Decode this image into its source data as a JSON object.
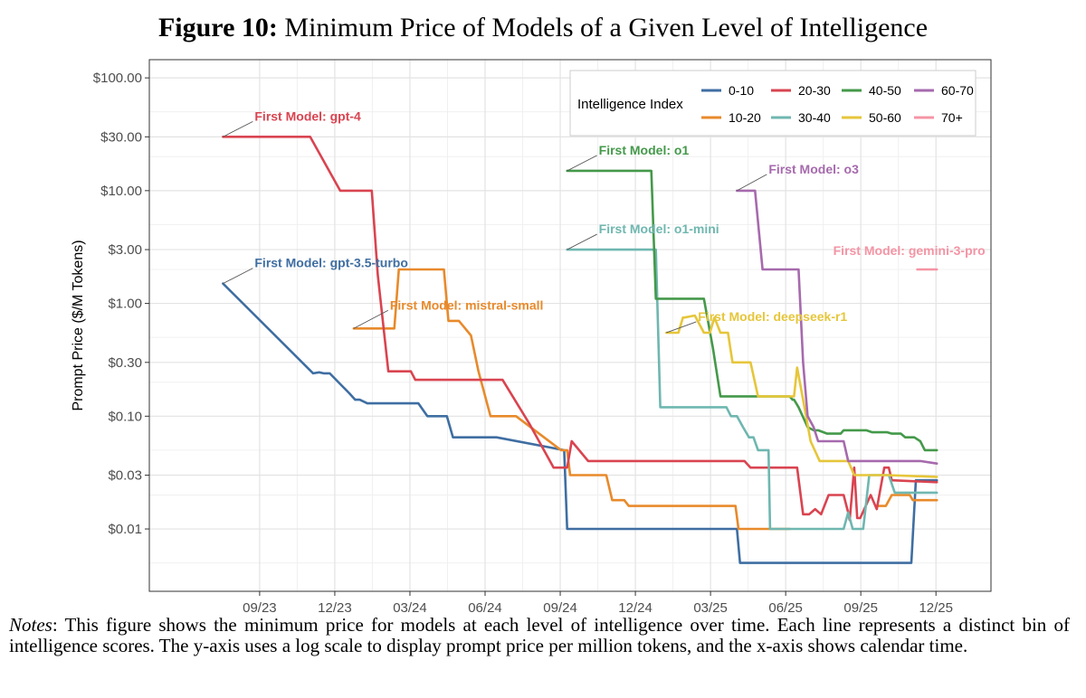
{
  "figure": {
    "number_label": "Figure 10:",
    "title": "Minimum Price of Models of a Given Level of Intelligence"
  },
  "notes": {
    "label": "Notes",
    "text": ": This figure shows the minimum price for models at each level of intelligence over time. Each line represents a distinct bin of intelligence scores. The y-axis uses a log scale to display prompt price per million tokens, and the x-axis shows calendar time."
  },
  "chart_data": {
    "type": "line",
    "title": "Minimum Price of Models of a Given Level of Intelligence",
    "xlabel": "",
    "ylabel": "Prompt Price ($/M Tokens)",
    "yscale": "log",
    "ylim": [
      0.0028,
      145
    ],
    "xlim": [
      2023.3,
      2026.1
    ],
    "grid": true,
    "x_ticks": [
      {
        "label": "09/23",
        "value": 2023.667
      },
      {
        "label": "12/23",
        "value": 2023.917
      },
      {
        "label": "03/24",
        "value": 2024.167
      },
      {
        "label": "06/24",
        "value": 2024.417
      },
      {
        "label": "09/24",
        "value": 2024.667
      },
      {
        "label": "12/24",
        "value": 2024.917
      },
      {
        "label": "03/25",
        "value": 2025.167
      },
      {
        "label": "06/25",
        "value": 2025.417
      },
      {
        "label": "09/25",
        "value": 2025.667
      },
      {
        "label": "12/25",
        "value": 2025.917
      }
    ],
    "y_ticks": [
      {
        "label": "$100.00",
        "value": 100
      },
      {
        "label": "$30.00",
        "value": 30
      },
      {
        "label": "$10.00",
        "value": 10
      },
      {
        "label": "$3.00",
        "value": 3
      },
      {
        "label": "$1.00",
        "value": 1
      },
      {
        "label": "$0.30",
        "value": 0.3
      },
      {
        "label": "$0.10",
        "value": 0.1
      },
      {
        "label": "$0.03",
        "value": 0.03
      },
      {
        "label": "$0.01",
        "value": 0.01
      }
    ],
    "y_minor_ticks": [
      50,
      20,
      5,
      2,
      0.5,
      0.2,
      0.05,
      0.02,
      0.005
    ],
    "legend": {
      "title": "Intelligence Index",
      "position": "top-right",
      "columns": 4
    },
    "series": [
      {
        "name": "0-10",
        "color": "#3f6ea2",
        "legend_order": 0,
        "first_model": "First Model: gpt-3.5-turbo",
        "points": [
          [
            2023.545,
            1.5
          ],
          [
            2023.845,
            0.24
          ],
          [
            2023.865,
            0.245
          ],
          [
            2023.88,
            0.24
          ],
          [
            2023.9,
            0.24
          ],
          [
            2023.965,
            0.16
          ],
          [
            2023.985,
            0.14
          ],
          [
            2024.0,
            0.14
          ],
          [
            2024.025,
            0.13
          ],
          [
            2024.155,
            0.13
          ],
          [
            2024.195,
            0.13
          ],
          [
            2024.225,
            0.1
          ],
          [
            2024.29,
            0.1
          ],
          [
            2024.31,
            0.065
          ],
          [
            2024.455,
            0.065
          ],
          [
            2024.68,
            0.05
          ],
          [
            2024.69,
            0.01
          ],
          [
            2025.255,
            0.01
          ],
          [
            2025.265,
            0.005
          ],
          [
            2025.835,
            0.005
          ],
          [
            2025.85,
            0.027
          ],
          [
            2025.92,
            0.027
          ]
        ]
      },
      {
        "name": "10-20",
        "color": "#e88a2b",
        "legend_order": 4,
        "first_model": "First Model: mistral-small",
        "points": [
          [
            2023.98,
            0.6
          ],
          [
            2024.115,
            0.6
          ],
          [
            2024.13,
            2.0
          ],
          [
            2024.165,
            2.0
          ],
          [
            2024.28,
            2.0
          ],
          [
            2024.295,
            0.7
          ],
          [
            2024.33,
            0.7
          ],
          [
            2024.37,
            0.52
          ],
          [
            2024.395,
            0.25
          ],
          [
            2024.435,
            0.1
          ],
          [
            2024.52,
            0.1
          ],
          [
            2024.67,
            0.05
          ],
          [
            2024.69,
            0.05
          ],
          [
            2024.7,
            0.03
          ],
          [
            2024.82,
            0.03
          ],
          [
            2024.84,
            0.018
          ],
          [
            2024.88,
            0.018
          ],
          [
            2024.895,
            0.016
          ],
          [
            2025.25,
            0.016
          ],
          [
            2025.26,
            0.01
          ],
          [
            2025.365,
            0.01
          ],
          [
            2025.385,
            0.01
          ],
          [
            2025.43,
            0.01
          ]
        ],
        "points_b": [
          [
            2025.72,
            0.016
          ],
          [
            2025.75,
            0.016
          ],
          [
            2025.77,
            0.02
          ],
          [
            2025.83,
            0.02
          ],
          [
            2025.84,
            0.018
          ],
          [
            2025.92,
            0.018
          ]
        ]
      },
      {
        "name": "20-30",
        "color": "#d94450",
        "legend_order": 1,
        "first_model": "First Model: gpt-4",
        "points": [
          [
            2023.545,
            30
          ],
          [
            2023.835,
            30
          ],
          [
            2023.935,
            10
          ],
          [
            2023.96,
            10
          ],
          [
            2024.0,
            10
          ],
          [
            2024.025,
            10
          ],
          [
            2024.04,
            10
          ],
          [
            2024.06,
            1.8
          ],
          [
            2024.095,
            0.25
          ],
          [
            2024.15,
            0.25
          ],
          [
            2024.17,
            0.25
          ],
          [
            2024.185,
            0.21
          ],
          [
            2024.245,
            0.21
          ],
          [
            2024.29,
            0.21
          ],
          [
            2024.365,
            0.21
          ],
          [
            2024.475,
            0.21
          ],
          [
            2024.565,
            0.085
          ],
          [
            2024.645,
            0.035
          ],
          [
            2024.68,
            0.035
          ],
          [
            2024.69,
            0.035
          ],
          [
            2024.705,
            0.06
          ],
          [
            2024.76,
            0.04
          ],
          [
            2025.075,
            0.04
          ],
          [
            2025.28,
            0.04
          ],
          [
            2025.3,
            0.035
          ],
          [
            2025.385,
            0.035
          ],
          [
            2025.455,
            0.035
          ],
          [
            2025.475,
            0.0135
          ],
          [
            2025.495,
            0.0135
          ],
          [
            2025.515,
            0.015
          ],
          [
            2025.535,
            0.0135
          ],
          [
            2025.56,
            0.02
          ],
          [
            2025.61,
            0.02
          ],
          [
            2025.625,
            0.014
          ],
          [
            2025.63,
            0.012
          ],
          [
            2025.645,
            0.035
          ],
          [
            2025.655,
            0.0125
          ],
          [
            2025.665,
            0.0125
          ],
          [
            2025.7,
            0.02
          ],
          [
            2025.72,
            0.015
          ],
          [
            2025.745,
            0.035
          ],
          [
            2025.76,
            0.035
          ],
          [
            2025.77,
            0.027
          ],
          [
            2025.92,
            0.026
          ]
        ]
      },
      {
        "name": "30-40",
        "color": "#6fb7b0",
        "legend_order": 5,
        "first_model": "First Model: o1-mini",
        "points": [
          [
            2024.69,
            3.0
          ],
          [
            2024.74,
            3.0
          ],
          [
            2024.965,
            3.0
          ],
          [
            2024.985,
            3.0
          ],
          [
            2025.0,
            0.12
          ],
          [
            2025.06,
            0.12
          ],
          [
            2025.12,
            0.12
          ],
          [
            2025.22,
            0.12
          ],
          [
            2025.235,
            0.1
          ],
          [
            2025.255,
            0.1
          ],
          [
            2025.275,
            0.08
          ],
          [
            2025.295,
            0.065
          ],
          [
            2025.31,
            0.065
          ],
          [
            2025.325,
            0.05
          ],
          [
            2025.335,
            0.05
          ],
          [
            2025.36,
            0.05
          ],
          [
            2025.365,
            0.01
          ],
          [
            2025.415,
            0.01
          ],
          [
            2025.55,
            0.01
          ],
          [
            2025.61,
            0.01
          ],
          [
            2025.625,
            0.014
          ],
          [
            2025.64,
            0.01
          ],
          [
            2025.65,
            0.01
          ],
          [
            2025.675,
            0.01
          ],
          [
            2025.695,
            0.03
          ],
          [
            2025.76,
            0.03
          ],
          [
            2025.78,
            0.021
          ],
          [
            2025.815,
            0.021
          ],
          [
            2025.92,
            0.021
          ]
        ]
      },
      {
        "name": "40-50",
        "color": "#44994a",
        "legend_order": 2,
        "first_model": "First Model: o1",
        "points": [
          [
            2024.69,
            15
          ],
          [
            2024.72,
            15
          ],
          [
            2024.965,
            15
          ],
          [
            2024.97,
            15
          ],
          [
            2024.985,
            1.1
          ],
          [
            2025.05,
            1.1
          ],
          [
            2025.145,
            1.1
          ],
          [
            2025.175,
            0.4
          ],
          [
            2025.2,
            0.15
          ],
          [
            2025.38,
            0.15
          ],
          [
            2025.4,
            0.15
          ],
          [
            2025.43,
            0.15
          ],
          [
            2025.44,
            0.14
          ],
          [
            2025.445,
            0.14
          ],
          [
            2025.46,
            0.12
          ],
          [
            2025.49,
            0.08
          ],
          [
            2025.51,
            0.075
          ],
          [
            2025.525,
            0.075
          ],
          [
            2025.555,
            0.07
          ],
          [
            2025.6,
            0.07
          ],
          [
            2025.61,
            0.075
          ],
          [
            2025.685,
            0.075
          ],
          [
            2025.705,
            0.072
          ],
          [
            2025.755,
            0.072
          ],
          [
            2025.77,
            0.07
          ],
          [
            2025.8,
            0.07
          ],
          [
            2025.815,
            0.065
          ],
          [
            2025.845,
            0.065
          ],
          [
            2025.865,
            0.06
          ],
          [
            2025.88,
            0.05
          ],
          [
            2025.92,
            0.05
          ]
        ]
      },
      {
        "name": "50-60",
        "color": "#e6c63a",
        "legend_order": 6,
        "first_model": "First Model: deepseek-r1",
        "points": [
          [
            2025.02,
            0.55
          ],
          [
            2025.055,
            0.55
          ],
          [
            2025.06,
            0.55
          ],
          [
            2025.075,
            0.75
          ],
          [
            2025.08,
            0.75
          ],
          [
            2025.115,
            0.78
          ],
          [
            2025.145,
            0.55
          ],
          [
            2025.165,
            0.55
          ],
          [
            2025.18,
            0.75
          ],
          [
            2025.2,
            0.55
          ],
          [
            2025.225,
            0.55
          ],
          [
            2025.24,
            0.3
          ],
          [
            2025.3,
            0.3
          ],
          [
            2025.325,
            0.15
          ],
          [
            2025.39,
            0.15
          ],
          [
            2025.43,
            0.15
          ],
          [
            2025.445,
            0.15
          ],
          [
            2025.455,
            0.27
          ],
          [
            2025.475,
            0.14
          ],
          [
            2025.5,
            0.06
          ],
          [
            2025.53,
            0.04
          ],
          [
            2025.6,
            0.04
          ],
          [
            2025.625,
            0.04
          ],
          [
            2025.645,
            0.03
          ],
          [
            2025.695,
            0.03
          ],
          [
            2025.755,
            0.03
          ],
          [
            2025.92,
            0.029
          ]
        ]
      },
      {
        "name": "60-70",
        "color": "#a66aad",
        "legend_order": 3,
        "first_model": "First Model: o3",
        "points": [
          [
            2025.255,
            10
          ],
          [
            2025.27,
            10
          ],
          [
            2025.315,
            10
          ],
          [
            2025.34,
            2.0
          ],
          [
            2025.35,
            2.0
          ],
          [
            2025.385,
            2.0
          ],
          [
            2025.445,
            2.0
          ],
          [
            2025.46,
            2.0
          ],
          [
            2025.475,
            0.3
          ],
          [
            2025.49,
            0.1
          ],
          [
            2025.51,
            0.08
          ],
          [
            2025.525,
            0.06
          ],
          [
            2025.555,
            0.06
          ],
          [
            2025.575,
            0.06
          ],
          [
            2025.585,
            0.06
          ],
          [
            2025.61,
            0.06
          ],
          [
            2025.625,
            0.04
          ],
          [
            2025.645,
            0.04
          ],
          [
            2025.675,
            0.04
          ],
          [
            2025.705,
            0.04
          ],
          [
            2025.76,
            0.04
          ],
          [
            2025.865,
            0.04
          ],
          [
            2025.92,
            0.038
          ]
        ]
      },
      {
        "name": "70+",
        "color": "#f494a4",
        "legend_order": 7,
        "first_model": "First Model: gemini-3-pro",
        "points": [
          [
            2025.855,
            2.0
          ],
          [
            2025.87,
            2.0
          ],
          [
            2025.92,
            2.0
          ]
        ]
      }
    ]
  }
}
